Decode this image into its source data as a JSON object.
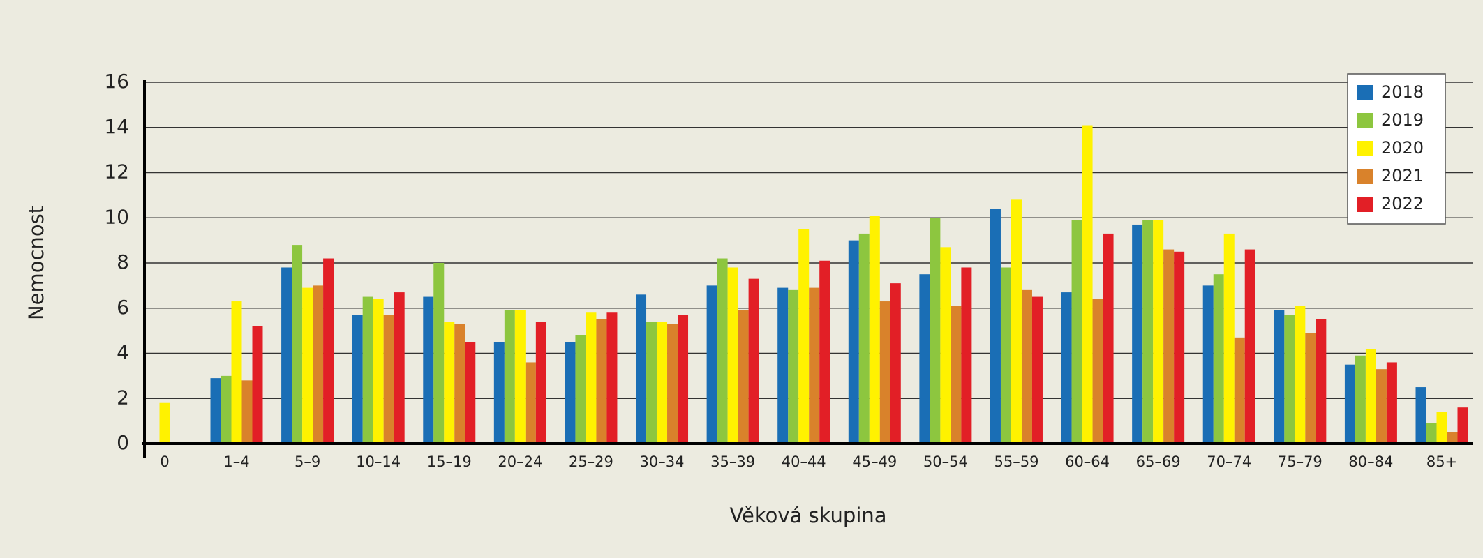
{
  "chart_data": {
    "type": "bar",
    "y_label": "Nemocnost",
    "x_label": "Věková skupina",
    "categories": [
      "0",
      "1–4",
      "5–9",
      "10–14",
      "15–19",
      "20–24",
      "25–29",
      "30–34",
      "35–39",
      "40–44",
      "45–49",
      "50–54",
      "55–59",
      "60–64",
      "65–69",
      "70–74",
      "75–79",
      "80–84",
      "85+"
    ],
    "series": [
      {
        "name": "2018",
        "color": "#1a6eb5",
        "values": [
          0,
          2.9,
          7.8,
          5.7,
          6.5,
          4.5,
          4.5,
          6.6,
          7.0,
          6.9,
          9.0,
          7.5,
          10.4,
          6.7,
          9.7,
          7.0,
          5.9,
          3.5,
          2.5
        ]
      },
      {
        "name": "2019",
        "color": "#8dc63f",
        "values": [
          0,
          3.0,
          8.8,
          6.5,
          8.0,
          5.9,
          4.8,
          5.4,
          8.2,
          6.8,
          9.3,
          10.0,
          7.8,
          9.9,
          9.9,
          7.5,
          5.7,
          3.9,
          0.9
        ]
      },
      {
        "name": "2020",
        "color": "#fff200",
        "values": [
          1.8,
          6.3,
          6.9,
          6.4,
          5.4,
          5.9,
          5.8,
          5.4,
          7.8,
          9.5,
          10.1,
          8.7,
          10.8,
          14.1,
          9.9,
          9.3,
          6.1,
          4.2,
          1.4
        ]
      },
      {
        "name": "2021",
        "color": "#d9822b",
        "values": [
          0,
          2.8,
          7.0,
          5.7,
          5.3,
          3.6,
          5.5,
          5.3,
          5.9,
          6.9,
          6.3,
          6.1,
          6.8,
          6.4,
          8.6,
          4.7,
          4.9,
          3.3,
          0.5
        ]
      },
      {
        "name": "2022",
        "color": "#e21f26",
        "values": [
          0,
          5.2,
          8.2,
          6.7,
          4.5,
          5.4,
          5.8,
          5.7,
          7.3,
          8.1,
          7.1,
          7.8,
          6.5,
          9.3,
          8.5,
          8.6,
          5.5,
          3.6,
          1.6
        ]
      }
    ],
    "ylim": [
      0,
      16
    ],
    "yticks": [
      0,
      2,
      4,
      6,
      8,
      10,
      12,
      14,
      16
    ],
    "grid": true,
    "legend": "top-right"
  }
}
